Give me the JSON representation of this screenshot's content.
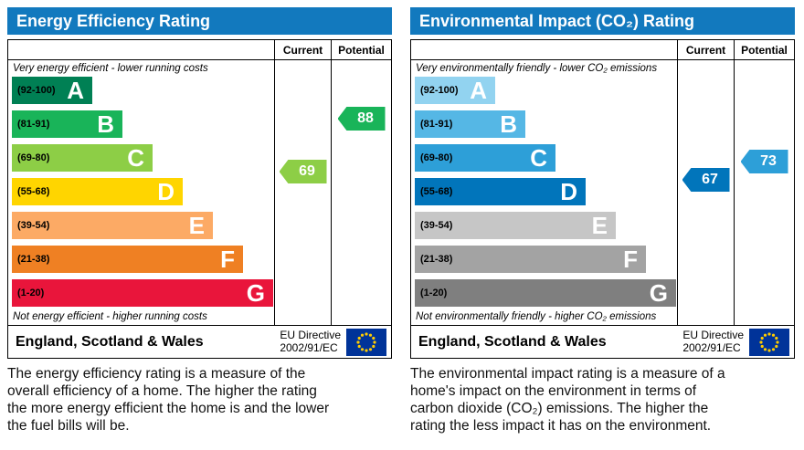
{
  "theme": {
    "header_bg": "#1279be",
    "header_text": "#ffffff",
    "border": "#000000",
    "eu_flag_bg": "#003399",
    "eu_flag_star": "#ffcc00"
  },
  "chart_data": [
    {
      "type": "epc-band-chart",
      "title": "Energy Efficiency Rating",
      "columns": {
        "current": "Current",
        "potential": "Potential"
      },
      "top_note": "Very energy efficient - lower running costs",
      "bottom_note": "Not energy efficient - higher running costs",
      "bands": [
        {
          "letter": "A",
          "range_label": "(92-100)",
          "min": 92,
          "max": 100,
          "color": "#008054"
        },
        {
          "letter": "B",
          "range_label": "(81-91)",
          "min": 81,
          "max": 91,
          "color": "#19b459"
        },
        {
          "letter": "C",
          "range_label": "(69-80)",
          "min": 69,
          "max": 80,
          "color": "#8dce46"
        },
        {
          "letter": "D",
          "range_label": "(55-68)",
          "min": 55,
          "max": 68,
          "color": "#ffd500"
        },
        {
          "letter": "E",
          "range_label": "(39-54)",
          "min": 39,
          "max": 54,
          "color": "#fcaa65"
        },
        {
          "letter": "F",
          "range_label": "(21-38)",
          "min": 21,
          "max": 38,
          "color": "#ef8023"
        },
        {
          "letter": "G",
          "range_label": "(1-20)",
          "min": 1,
          "max": 20,
          "color": "#e9153b"
        }
      ],
      "ratings": {
        "current": 69,
        "potential": 88
      },
      "footer": {
        "region": "England, Scotland & Wales",
        "directive_line1": "EU Directive",
        "directive_line2": "2002/91/EC"
      },
      "description": "The energy efficiency rating is a measure of the overall efficiency of a home. The higher the rating the more energy efficient the home is and the lower the fuel bills will be."
    },
    {
      "type": "epc-band-chart",
      "title": "Environmental Impact (CO₂) Rating",
      "columns": {
        "current": "Current",
        "potential": "Potential"
      },
      "top_note": "Very environmentally friendly - lower CO₂ emissions",
      "bottom_note": "Not environmentally friendly - higher CO₂ emissions",
      "bands": [
        {
          "letter": "A",
          "range_label": "(92-100)",
          "min": 92,
          "max": 100,
          "color": "#92d3f0"
        },
        {
          "letter": "B",
          "range_label": "(81-91)",
          "min": 81,
          "max": 91,
          "color": "#55b7e5"
        },
        {
          "letter": "C",
          "range_label": "(69-80)",
          "min": 69,
          "max": 80,
          "color": "#2d9fd8"
        },
        {
          "letter": "D",
          "range_label": "(55-68)",
          "min": 55,
          "max": 68,
          "color": "#0175bb"
        },
        {
          "letter": "E",
          "range_label": "(39-54)",
          "min": 39,
          "max": 54,
          "color": "#c6c6c6"
        },
        {
          "letter": "F",
          "range_label": "(21-38)",
          "min": 21,
          "max": 38,
          "color": "#a3a3a3"
        },
        {
          "letter": "G",
          "range_label": "(1-20)",
          "min": 1,
          "max": 20,
          "color": "#7f7f7f"
        }
      ],
      "ratings": {
        "current": 67,
        "potential": 73
      },
      "footer": {
        "region": "England, Scotland & Wales",
        "directive_line1": "EU Directive",
        "directive_line2": "2002/91/EC"
      },
      "description": "The environmental impact rating is a measure of a home's impact on the environment in terms of carbon dioxide (CO₂) emissions. The higher the rating the less impact it has on the environment."
    }
  ]
}
